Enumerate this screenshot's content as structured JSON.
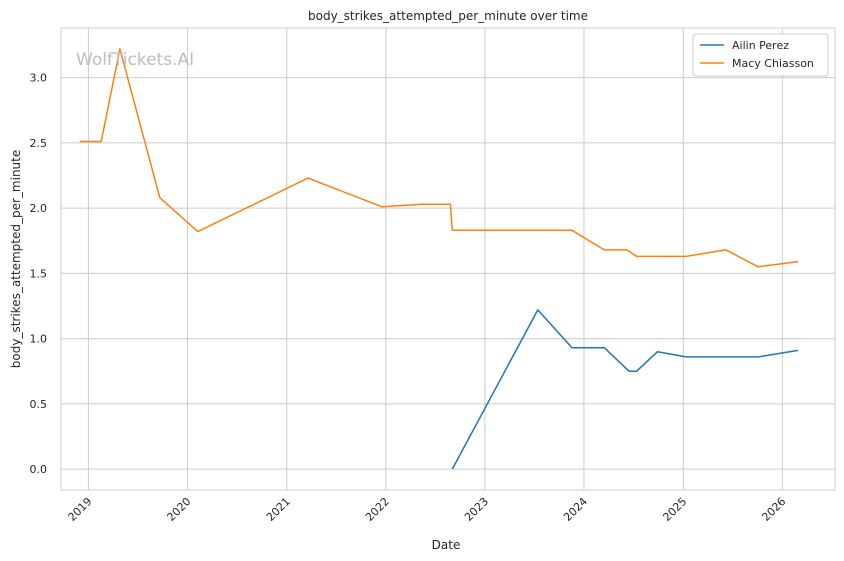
{
  "watermark": "WolfTickets.AI",
  "chart_data": {
    "type": "line",
    "title": "body_strikes_attempted_per_minute over time",
    "xlabel": "Date",
    "ylabel": "body_strikes_attempted_per_minute",
    "x_ticks": [
      "2019",
      "2020",
      "2021",
      "2022",
      "2023",
      "2024",
      "2025",
      "2026"
    ],
    "y_ticks": [
      "0.0",
      "0.5",
      "1.0",
      "1.5",
      "2.0",
      "2.5",
      "3.0"
    ],
    "ylim": [
      -0.16,
      3.38
    ],
    "xlim": [
      "2018-09-22",
      "2026-07-14"
    ],
    "grid": true,
    "legend_position": "top-right",
    "series": [
      {
        "name": "Ailin Perez",
        "color": "#1f77b4",
        "points": [
          {
            "x": "2022-09-03",
            "y": 0.0
          },
          {
            "x": "2023-07-15",
            "y": 1.22
          },
          {
            "x": "2023-11-18",
            "y": 0.93
          },
          {
            "x": "2024-03-16",
            "y": 0.93
          },
          {
            "x": "2024-06-15",
            "y": 0.75
          },
          {
            "x": "2024-07-13",
            "y": 0.75
          },
          {
            "x": "2024-09-28",
            "y": 0.9
          },
          {
            "x": "2025-01-11",
            "y": 0.86
          },
          {
            "x": "2025-10-04",
            "y": 0.86
          },
          {
            "x": "2026-02-28",
            "y": 0.91
          }
        ]
      },
      {
        "name": "Macy Chiasson",
        "color": "#ff7f0e",
        "points": [
          {
            "x": "2018-11-30",
            "y": 2.51
          },
          {
            "x": "2019-02-17",
            "y": 2.51
          },
          {
            "x": "2019-04-27",
            "y": 3.22
          },
          {
            "x": "2019-09-21",
            "y": 2.08
          },
          {
            "x": "2020-02-08",
            "y": 1.82
          },
          {
            "x": "2021-03-20",
            "y": 2.23
          },
          {
            "x": "2021-12-18",
            "y": 2.01
          },
          {
            "x": "2022-05-14",
            "y": 2.03
          },
          {
            "x": "2022-08-27",
            "y": 2.03
          },
          {
            "x": "2022-09-03",
            "y": 1.83
          },
          {
            "x": "2023-11-18",
            "y": 1.83
          },
          {
            "x": "2024-03-16",
            "y": 1.68
          },
          {
            "x": "2024-06-08",
            "y": 1.68
          },
          {
            "x": "2024-07-13",
            "y": 1.63
          },
          {
            "x": "2025-01-11",
            "y": 1.63
          },
          {
            "x": "2025-06-07",
            "y": 1.68
          },
          {
            "x": "2025-10-04",
            "y": 1.55
          },
          {
            "x": "2026-02-28",
            "y": 1.59
          }
        ]
      }
    ]
  }
}
